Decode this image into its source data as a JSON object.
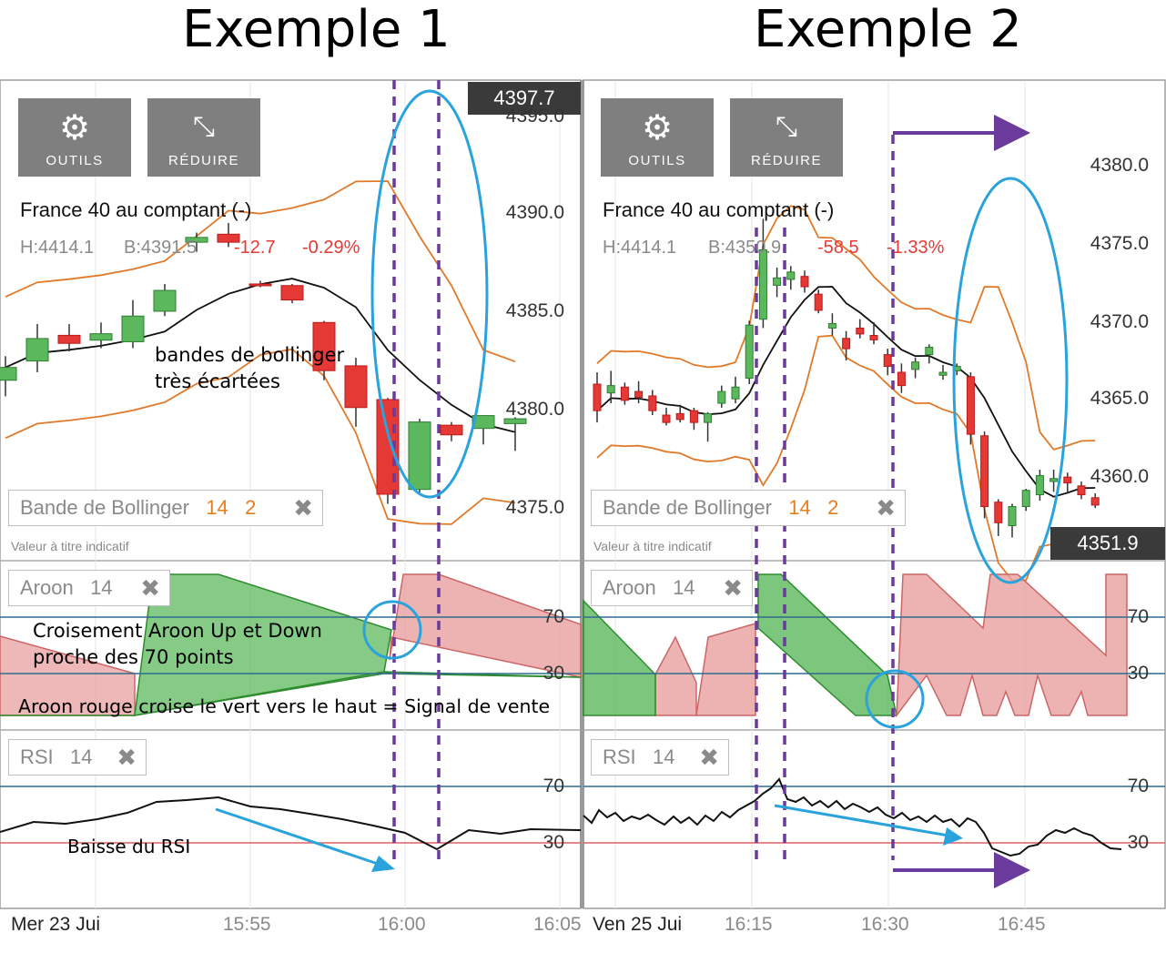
{
  "titles": {
    "left": "Exemple 1",
    "right": "Exemple 2"
  },
  "buttons": {
    "tools": "OUTILS",
    "reduce": "RÉDUIRE"
  },
  "colors": {
    "bull": "#5cb85c",
    "bear": "#e53935",
    "band": "#e07a2a",
    "mid": "#111111",
    "aroon_up": "#5cb85c",
    "aroon_down": "#e8a0a0",
    "circle": "#2aa3dd",
    "marker": "#6a3a9c"
  },
  "panel1": {
    "instrument": "France 40 au comptant (-)",
    "high": "H:4414.1",
    "bid": "B:4391.5",
    "change": "-12.7",
    "change_pct": "-0.29%",
    "price_tag": "4397.7",
    "y_labels": [
      "4395.0",
      "4390.0",
      "4385.0",
      "4380.0",
      "4375.0"
    ],
    "bollinger_label": "Bande de Bollinger",
    "bollinger_p1": "14",
    "bollinger_p2": "2",
    "note": "Valeur à titre indicatif",
    "aroon_label": "Aroon",
    "aroon_p": "14",
    "aroon_levels": [
      "70",
      "30"
    ],
    "rsi_label": "RSI",
    "rsi_p": "14",
    "rsi_levels": [
      "70",
      "30"
    ],
    "x_labels": [
      "Mer 23 Jui",
      "15:55",
      "16:00",
      "16:05"
    ],
    "annotations": {
      "bands": [
        "bandes de bollinger",
        "très écartées"
      ],
      "cross": [
        "Croisement Aroon Up et Down",
        "proche des 70 points"
      ],
      "signal": "Aroon rouge croise le vert vers le haut = Signal de vente",
      "rsi": "Baisse du RSI"
    }
  },
  "panel2": {
    "instrument": "France 40 au comptant (-)",
    "high": "H:4414.1",
    "bid": "B:4350.9",
    "change": "-58.5",
    "change_pct": "-1.33%",
    "price_tag": "4351.9",
    "y_labels": [
      "4380.0",
      "4375.0",
      "4370.0",
      "4365.0",
      "4360.0"
    ],
    "bollinger_label": "Bande de Bollinger",
    "bollinger_p1": "14",
    "bollinger_p2": "2",
    "note": "Valeur à titre indicatif",
    "aroon_label": "Aroon",
    "aroon_p": "14",
    "aroon_levels": [
      "70",
      "30"
    ],
    "rsi_label": "RSI",
    "rsi_p": "14",
    "rsi_levels": [
      "70",
      "30"
    ],
    "x_labels": [
      "Ven 25 Jui",
      "16:15",
      "16:30",
      "16:45"
    ]
  },
  "chart_data": [
    {
      "type": "candlestick",
      "instrument": "France 40 au comptant (-)",
      "x_ticks": [
        "15:55",
        "16:00",
        "16:05"
      ],
      "ylim": [
        4372.8,
        4399.0
      ],
      "candles": [
        {
          "o": 4382.0,
          "h": 4383.5,
          "l": 4381.0,
          "c": 4382.8
        },
        {
          "o": 4383.2,
          "h": 4385.5,
          "l": 4382.5,
          "c": 4384.6
        },
        {
          "o": 4384.8,
          "h": 4385.5,
          "l": 4383.8,
          "c": 4384.3
        },
        {
          "o": 4384.5,
          "h": 4385.6,
          "l": 4384.0,
          "c": 4384.9
        },
        {
          "o": 4384.4,
          "h": 4387.0,
          "l": 4384.0,
          "c": 4386.0
        },
        {
          "o": 4386.3,
          "h": 4388.0,
          "l": 4386.0,
          "c": 4387.6
        },
        {
          "o": 4390.6,
          "h": 4391.2,
          "l": 4390.0,
          "c": 4390.9
        },
        {
          "o": 4391.1,
          "h": 4391.8,
          "l": 4390.3,
          "c": 4390.6
        },
        {
          "o": 4388.0,
          "h": 4388.2,
          "l": 4387.8,
          "c": 4387.9
        },
        {
          "o": 4387.9,
          "h": 4388.0,
          "l": 4386.8,
          "c": 4387.0
        },
        {
          "o": 4385.6,
          "h": 4385.7,
          "l": 4382.0,
          "c": 4382.6
        },
        {
          "o": 4382.9,
          "h": 4383.4,
          "l": 4379.1,
          "c": 4380.3
        },
        {
          "o": 4380.8,
          "h": 4380.9,
          "l": 4374.3,
          "c": 4374.9
        },
        {
          "o": 4375.2,
          "h": 4379.6,
          "l": 4375.0,
          "c": 4379.4
        },
        {
          "o": 4379.2,
          "h": 4379.4,
          "l": 4378.2,
          "c": 4378.6
        },
        {
          "o": 4379.0,
          "h": 4379.8,
          "l": 4378.0,
          "c": 4379.8
        },
        {
          "o": 4379.3,
          "h": 4379.7,
          "l": 4377.6,
          "c": 4379.6
        }
      ],
      "bollinger": {
        "period": 14,
        "stddev": 2
      },
      "aroon": {
        "period": 14,
        "levels": [
          70,
          30
        ]
      },
      "rsi": {
        "period": 14,
        "levels": [
          70,
          30
        ]
      }
    },
    {
      "type": "candlestick",
      "instrument": "France 40 au comptant (-)",
      "x_ticks": [
        "16:15",
        "16:30",
        "16:45"
      ],
      "ylim": [
        4355.0,
        4384.0
      ],
      "candles": [
        {
          "o": 4366.6,
          "h": 4367.4,
          "l": 4364.0,
          "c": 4364.8
        },
        {
          "o": 4366.0,
          "h": 4367.5,
          "l": 4365.3,
          "c": 4366.5
        },
        {
          "o": 4366.4,
          "h": 4366.7,
          "l": 4365.2,
          "c": 4365.5
        },
        {
          "o": 4366.1,
          "h": 4366.8,
          "l": 4365.3,
          "c": 4365.7
        },
        {
          "o": 4365.8,
          "h": 4366.2,
          "l": 4364.5,
          "c": 4364.8
        },
        {
          "o": 4364.5,
          "h": 4365.0,
          "l": 4363.8,
          "c": 4364.0
        },
        {
          "o": 4364.6,
          "h": 4365.2,
          "l": 4364.0,
          "c": 4364.2
        },
        {
          "o": 4364.8,
          "h": 4365.0,
          "l": 4363.5,
          "c": 4364.0
        },
        {
          "o": 4364.0,
          "h": 4364.7,
          "l": 4362.7,
          "c": 4364.6
        },
        {
          "o": 4365.3,
          "h": 4366.5,
          "l": 4365.0,
          "c": 4366.1
        },
        {
          "o": 4365.6,
          "h": 4367.1,
          "l": 4365.3,
          "c": 4366.4
        },
        {
          "o": 4367.0,
          "h": 4370.9,
          "l": 4366.6,
          "c": 4370.6
        },
        {
          "o": 4371.0,
          "h": 4377.8,
          "l": 4370.4,
          "c": 4375.7
        },
        {
          "o": 4373.3,
          "h": 4374.5,
          "l": 4372.5,
          "c": 4373.8
        },
        {
          "o": 4373.7,
          "h": 4374.6,
          "l": 4373.0,
          "c": 4374.2
        },
        {
          "o": 4373.9,
          "h": 4374.3,
          "l": 4372.8,
          "c": 4373.2
        },
        {
          "o": 4372.7,
          "h": 4373.0,
          "l": 4371.4,
          "c": 4371.6
        },
        {
          "o": 4370.4,
          "h": 4371.4,
          "l": 4369.9,
          "c": 4370.7
        },
        {
          "o": 4369.7,
          "h": 4370.2,
          "l": 4368.2,
          "c": 4369.0
        },
        {
          "o": 4370.4,
          "h": 4371.0,
          "l": 4369.7,
          "c": 4370.0
        },
        {
          "o": 4369.9,
          "h": 4370.8,
          "l": 4369.3,
          "c": 4369.6
        },
        {
          "o": 4368.6,
          "h": 4369.0,
          "l": 4367.2,
          "c": 4367.8
        },
        {
          "o": 4367.4,
          "h": 4368.0,
          "l": 4366.0,
          "c": 4366.5
        },
        {
          "o": 4367.6,
          "h": 4368.4,
          "l": 4367.0,
          "c": 4368.1
        },
        {
          "o": 4368.6,
          "h": 4369.3,
          "l": 4368.0,
          "c": 4369.1
        },
        {
          "o": 4367.2,
          "h": 4367.9,
          "l": 4366.9,
          "c": 4367.4
        },
        {
          "o": 4367.5,
          "h": 4368.0,
          "l": 4367.2,
          "c": 4367.8
        },
        {
          "o": 4367.1,
          "h": 4367.4,
          "l": 4362.5,
          "c": 4363.2
        },
        {
          "o": 4363.1,
          "h": 4363.4,
          "l": 4357.5,
          "c": 4358.3
        },
        {
          "o": 4358.6,
          "h": 4358.8,
          "l": 4356.3,
          "c": 4357.2
        },
        {
          "o": 4357.0,
          "h": 4358.5,
          "l": 4356.2,
          "c": 4358.3
        },
        {
          "o": 4358.3,
          "h": 4359.5,
          "l": 4358.0,
          "c": 4359.4
        },
        {
          "o": 4359.1,
          "h": 4360.8,
          "l": 4358.7,
          "c": 4360.4
        },
        {
          "o": 4360.0,
          "h": 4360.8,
          "l": 4359.3,
          "c": 4360.2
        },
        {
          "o": 4360.3,
          "h": 4360.6,
          "l": 4359.3,
          "c": 4359.9
        },
        {
          "o": 4359.7,
          "h": 4360.0,
          "l": 4358.8,
          "c": 4359.1
        },
        {
          "o": 4358.9,
          "h": 4359.2,
          "l": 4358.2,
          "c": 4358.4
        }
      ],
      "bollinger": {
        "period": 14,
        "stddev": 2
      },
      "aroon": {
        "period": 14,
        "levels": [
          70,
          30
        ]
      },
      "rsi": {
        "period": 14,
        "levels": [
          70,
          30
        ]
      }
    }
  ]
}
